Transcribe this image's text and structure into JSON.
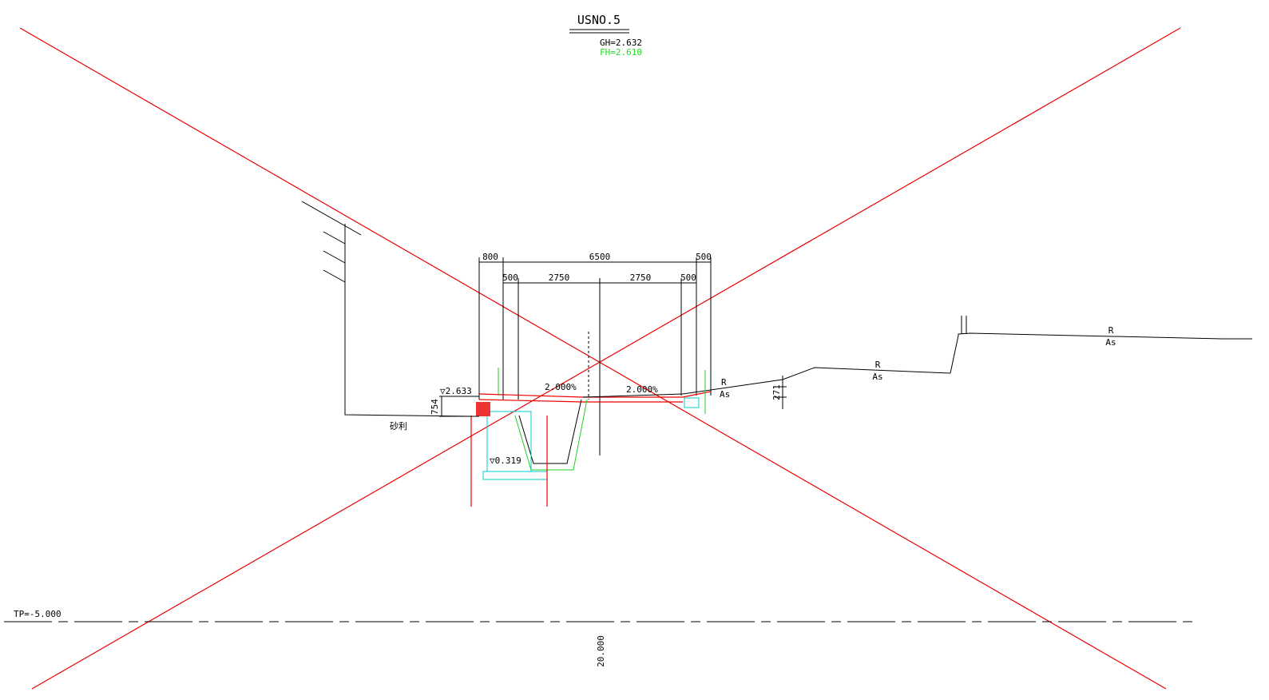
{
  "title": "USNO.5",
  "gh": "GH=2.632",
  "fh": "FH=2.610",
  "datum": "TP=-5.000",
  "scale_length": "20.000",
  "dimensions": {
    "top": [
      "800",
      "6500",
      "500"
    ],
    "lanes": [
      "500",
      "2750",
      "2750",
      "500"
    ],
    "height_left": "754",
    "height_right": "271"
  },
  "slopes": [
    "2.000%",
    "2.000%"
  ],
  "levels": [
    "▽2.633",
    "▽0.319"
  ],
  "materials": [
    "砂利",
    "R",
    "As",
    "R",
    "As",
    "R",
    "As"
  ]
}
